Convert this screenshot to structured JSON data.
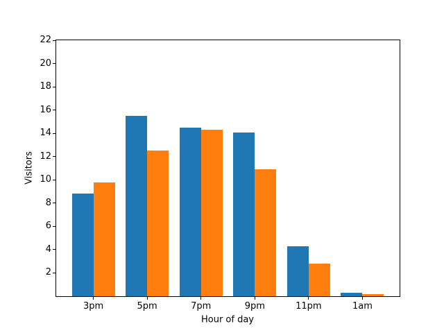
{
  "chart_data": {
    "type": "bar",
    "title": "",
    "xlabel": "Hour of day",
    "ylabel": "Visitors",
    "categories": [
      "3pm",
      "5pm",
      "7pm",
      "9pm",
      "11pm",
      "1am"
    ],
    "series": [
      {
        "name": "blue",
        "color": "#1f77b4",
        "values": [
          8.8,
          15.5,
          14.5,
          14.1,
          4.3,
          0.3
        ]
      },
      {
        "name": "orange",
        "color": "#ff7f0e",
        "values": [
          9.8,
          12.5,
          14.3,
          10.9,
          2.8,
          0.2
        ]
      }
    ],
    "ylim": [
      0,
      22
    ],
    "yticks": [
      2,
      4,
      6,
      8,
      10,
      12,
      14,
      16,
      18,
      20,
      22
    ],
    "xlim": [
      -0.69,
      5.69
    ],
    "bar_width": 0.4,
    "grid": false,
    "legend_visible": false,
    "background_color": "#ffffff",
    "frame_color": "#000000"
  }
}
